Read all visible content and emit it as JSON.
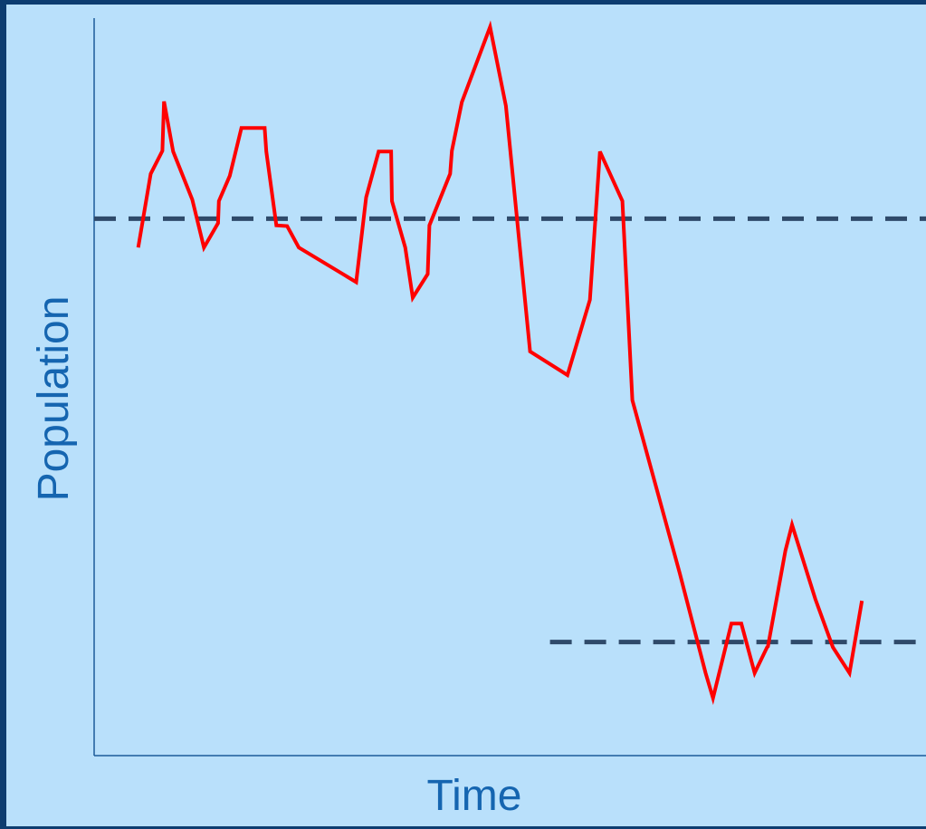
{
  "chart_data": {
    "type": "line",
    "title": "",
    "xlabel": "Time",
    "ylabel": "Population",
    "xlim": [
      0,
      100
    ],
    "ylim": [
      0,
      100
    ],
    "grid": false,
    "legend": "none",
    "series": [
      {
        "color": "#ff0000",
        "x": [
          5.3,
          6.8,
          8.2,
          8.4,
          9.5,
          11.8,
          13.2,
          14.9,
          15.0,
          16.3,
          17.7,
          20.5,
          20.7,
          21.9,
          23.2,
          24.6,
          31.5,
          32.7,
          34.2,
          35.7,
          35.8,
          37.4,
          38.3,
          40.1,
          40.3,
          42.8,
          43.0,
          44.2,
          47.6,
          49.5,
          52.4,
          56.9,
          59.6,
          60.8,
          63.5,
          64.7,
          70.4,
          73.5,
          74.4,
          76.6,
          77.8,
          79.4,
          80.9,
          81.0,
          83.1,
          83.9,
          86.7,
          88.8,
          90.8,
          92.3
        ],
        "y": [
          68.9,
          78.9,
          82.0,
          88.7,
          81.9,
          75.4,
          68.9,
          72.2,
          75.2,
          78.6,
          85.1,
          85.1,
          81.9,
          71.9,
          71.8,
          68.9,
          64.2,
          75.7,
          81.9,
          81.9,
          75.2,
          68.9,
          62.1,
          65.3,
          71.9,
          78.9,
          82.0,
          88.6,
          98.8,
          88.1,
          54.8,
          51.6,
          61.8,
          81.9,
          75.2,
          48.2,
          24.7,
          11.2,
          7.8,
          17.9,
          17.9,
          11.2,
          14.7,
          14.8,
          27.8,
          31.3,
          21.2,
          14.7,
          11.2,
          21.0
        ]
      }
    ],
    "reference_lines": [
      {
        "y": 72.8,
        "x_start": 0,
        "x_end": 100,
        "style": "dashed",
        "color": "#2f4a6a"
      },
      {
        "y": 15.4,
        "x_start": 54.8,
        "x_end": 100,
        "style": "dashed",
        "color": "#2f4a6a"
      }
    ]
  }
}
